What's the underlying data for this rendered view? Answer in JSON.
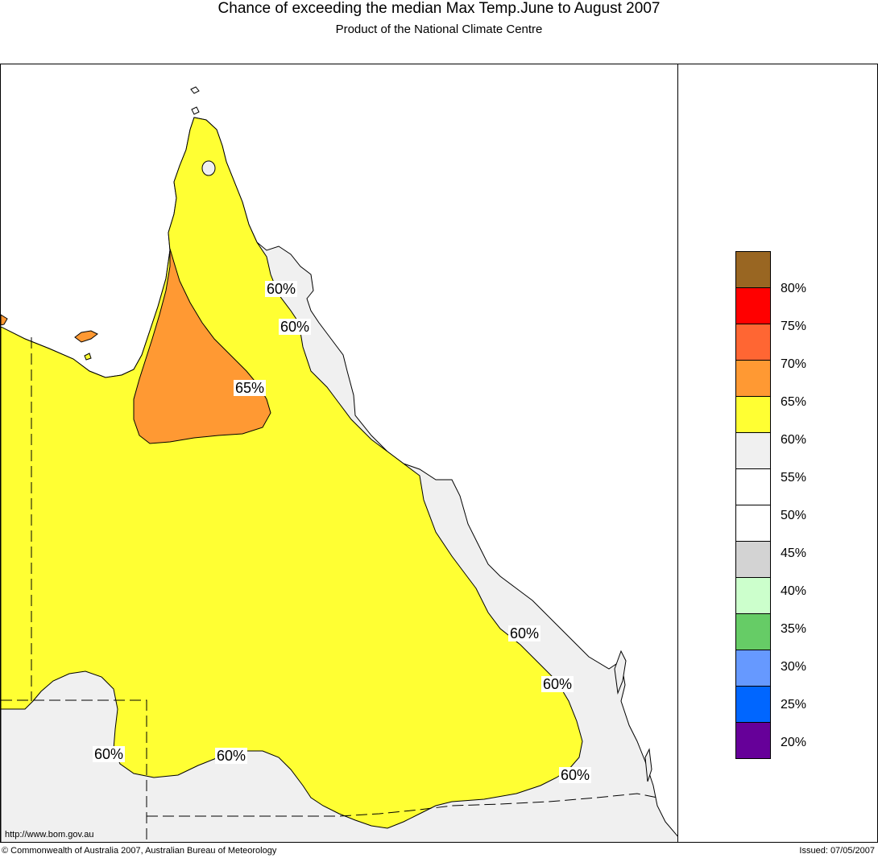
{
  "header": {
    "title": "Chance of exceeding the median Max Temp.June to August 2007",
    "subtitle": "Product of the National Climate Centre"
  },
  "map": {
    "region": "Queensland",
    "labels": [
      {
        "id": "a",
        "text": "60%"
      },
      {
        "id": "b",
        "text": "60%"
      },
      {
        "id": "c",
        "text": "65%"
      },
      {
        "id": "d",
        "text": "60%"
      },
      {
        "id": "e",
        "text": "60%"
      },
      {
        "id": "f",
        "text": "60%"
      },
      {
        "id": "g",
        "text": "60%"
      },
      {
        "id": "h",
        "text": "60%"
      }
    ],
    "zones": [
      {
        "name": "55-60",
        "color": "#f0f0f0"
      },
      {
        "name": "60-65",
        "color": "#ffff33"
      },
      {
        "name": "65-70",
        "color": "#ff9933"
      }
    ]
  },
  "legend": {
    "colors": [
      "#996622",
      "#ff0000",
      "#ff6633",
      "#ff9933",
      "#ffff33",
      "#f0f0f0",
      "#ffffff",
      "#ffffff",
      "#d3d3d3",
      "#ccffcc",
      "#66cc66",
      "#6699ff",
      "#0066ff",
      "#660099"
    ],
    "labels": [
      "80%",
      "75%",
      "70%",
      "65%",
      "60%",
      "55%",
      "50%",
      "45%",
      "40%",
      "35%",
      "30%",
      "25%",
      "20%"
    ]
  },
  "footer": {
    "url": "http://www.bom.gov.au",
    "copyright": "© Commonwealth of Australia 2007, Australian Bureau of Meteorology",
    "issued": "Issued: 07/05/2007"
  }
}
